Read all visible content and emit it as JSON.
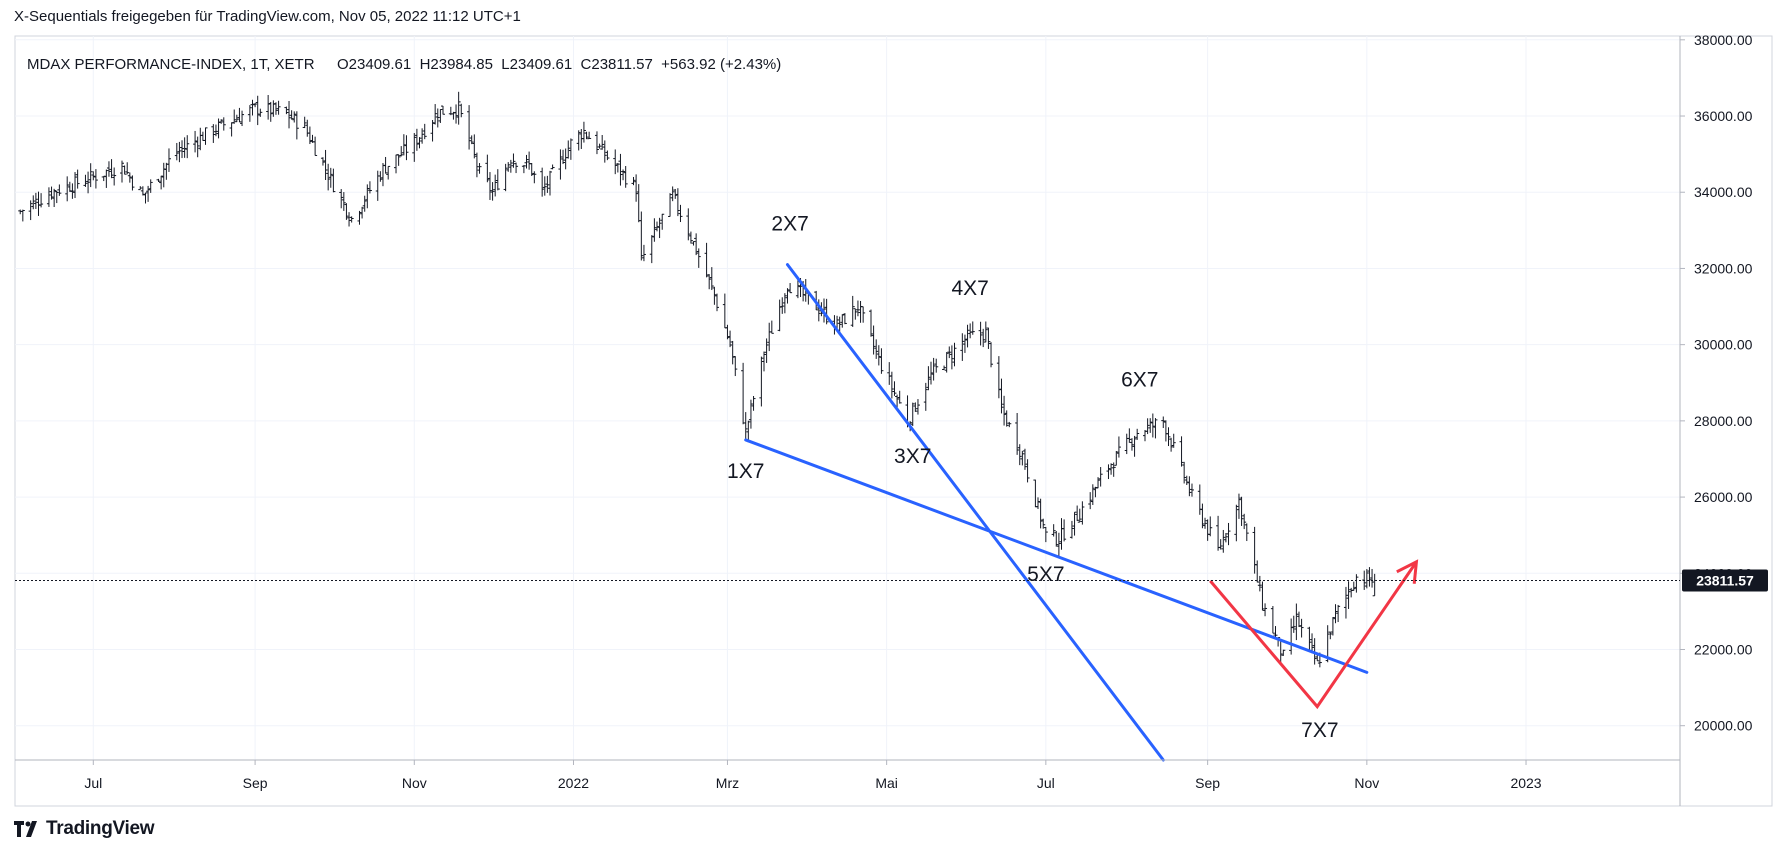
{
  "header": {
    "text": "X-Sequentials freigegeben für TradingView.com, Nov 05, 2022 11:12 UTC+1"
  },
  "footer": {
    "logo_text": "TradingView"
  },
  "chart_data": {
    "type": "ohlc",
    "title": "MDAX PERFORMANCE-INDEX, 1T, XETR",
    "ohlc_legend": "O23409.61  H23984.85  L23409.61  C23811.57  +563.92 (+2.43%)",
    "last_price_label": "23811.57",
    "last_price": 23811.57,
    "x_tick_labels": [
      "Jul",
      "Sep",
      "Nov",
      "2022",
      "Mrz",
      "Mai",
      "Jul",
      "Sep",
      "Nov",
      "2023"
    ],
    "x_tick_dates": [
      "2021-07-01",
      "2021-09-01",
      "2021-11-01",
      "2022-01-01",
      "2022-03-01",
      "2022-05-01",
      "2022-07-01",
      "2022-09-01",
      "2022-11-01",
      "2023-01-01"
    ],
    "x_range": [
      "2021-06-01",
      "2023-03-01"
    ],
    "y_ticks": [
      20000,
      22000,
      24000,
      26000,
      28000,
      30000,
      32000,
      34000,
      36000,
      38000
    ],
    "y_tick_labels": [
      "20000.00",
      "22000.00",
      "24000.00",
      "26000.00",
      "28000.00",
      "30000.00",
      "32000.00",
      "34000.00",
      "36000.00",
      "38000.00"
    ],
    "ylim": [
      19100,
      38100
    ],
    "grid": true,
    "close_path": [
      [
        "2021-06-03",
        33500
      ],
      [
        "2021-06-15",
        34000
      ],
      [
        "2021-07-01",
        34400
      ],
      [
        "2021-07-12",
        34700
      ],
      [
        "2021-07-20",
        33900
      ],
      [
        "2021-08-01",
        35000
      ],
      [
        "2021-08-15",
        35600
      ],
      [
        "2021-09-01",
        36200
      ],
      [
        "2021-09-12",
        36100
      ],
      [
        "2021-09-20",
        35700
      ],
      [
        "2021-10-01",
        34200
      ],
      [
        "2021-10-08",
        33300
      ],
      [
        "2021-10-20",
        34600
      ],
      [
        "2021-11-01",
        35300
      ],
      [
        "2021-11-10",
        36100
      ],
      [
        "2021-11-18",
        36200
      ],
      [
        "2021-11-26",
        34500
      ],
      [
        "2021-12-01",
        34000
      ],
      [
        "2021-12-08",
        34900
      ],
      [
        "2021-12-15",
        34700
      ],
      [
        "2021-12-20",
        34000
      ],
      [
        "2022-01-01",
        35400
      ],
      [
        "2022-01-05",
        35600
      ],
      [
        "2022-01-13",
        35000
      ],
      [
        "2022-01-25",
        34100
      ],
      [
        "2022-01-27",
        32200
      ],
      [
        "2022-02-08",
        33900
      ],
      [
        "2022-02-14",
        33000
      ],
      [
        "2022-02-24",
        31300
      ],
      [
        "2022-03-02",
        30000
      ],
      [
        "2022-03-08",
        27700
      ],
      [
        "2022-03-15",
        29800
      ],
      [
        "2022-03-24",
        31600
      ],
      [
        "2022-04-01",
        31200
      ],
      [
        "2022-04-12",
        30500
      ],
      [
        "2022-04-20",
        31000
      ],
      [
        "2022-04-28",
        29600
      ],
      [
        "2022-05-09",
        28000
      ],
      [
        "2022-05-18",
        29200
      ],
      [
        "2022-06-01",
        30200
      ],
      [
        "2022-06-08",
        30300
      ],
      [
        "2022-06-14",
        28300
      ],
      [
        "2022-06-22",
        27100
      ],
      [
        "2022-07-01",
        25000
      ],
      [
        "2022-07-06",
        24900
      ],
      [
        "2022-07-14",
        25600
      ],
      [
        "2022-07-25",
        26800
      ],
      [
        "2022-08-05",
        27700
      ],
      [
        "2022-08-15",
        28000
      ],
      [
        "2022-08-26",
        26000
      ],
      [
        "2022-09-05",
        24600
      ],
      [
        "2022-09-13",
        25900
      ],
      [
        "2022-09-22",
        23200
      ],
      [
        "2022-09-30",
        21800
      ],
      [
        "2022-10-05",
        22800
      ],
      [
        "2022-10-13",
        21600
      ],
      [
        "2022-10-20",
        22900
      ],
      [
        "2022-10-28",
        23900
      ],
      [
        "2022-11-04",
        23811.57
      ]
    ],
    "trendlines": [
      {
        "color": "#2962ff",
        "from": [
          "2022-03-08",
          27500
        ],
        "to": [
          "2022-11-01",
          21400
        ]
      },
      {
        "color": "#2962ff",
        "from": [
          "2022-03-24",
          32100
        ],
        "to": [
          "2022-08-15",
          19100
        ]
      }
    ],
    "arrow": {
      "color": "#f23645",
      "points": [
        [
          "2022-09-02",
          23800
        ],
        [
          "2022-10-13",
          20500
        ],
        [
          "2022-11-20",
          24300
        ]
      ]
    },
    "annotations": [
      {
        "text": "1X7",
        "date": "2022-03-08",
        "value": 26500
      },
      {
        "text": "2X7",
        "date": "2022-03-25",
        "value": 33000
      },
      {
        "text": "3X7",
        "date": "2022-05-11",
        "value": 26900
      },
      {
        "text": "4X7",
        "date": "2022-06-02",
        "value": 31300
      },
      {
        "text": "5X7",
        "date": "2022-07-01",
        "value": 23800
      },
      {
        "text": "6X7",
        "date": "2022-08-06",
        "value": 28900
      },
      {
        "text": "7X7",
        "date": "2022-10-14",
        "value": 19700
      }
    ]
  }
}
